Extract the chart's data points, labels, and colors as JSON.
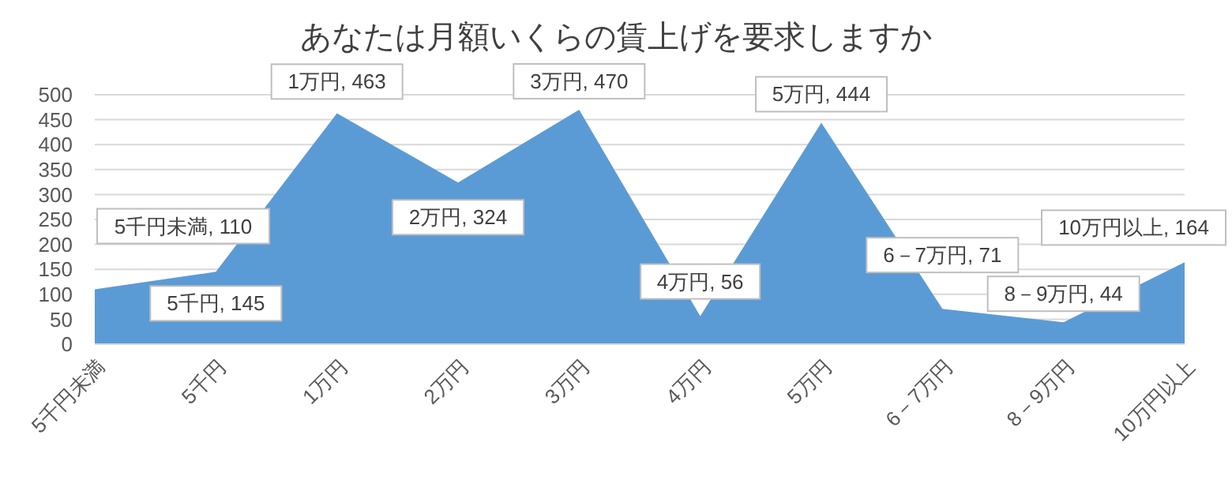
{
  "chart_data": {
    "type": "area",
    "title": "あなたは月額いくらの賃上げを要求しますか",
    "categories": [
      "5千円未満",
      "5千円",
      "1万円",
      "2万円",
      "3万円",
      "4万円",
      "5万円",
      "6－7万円",
      "8－9万円",
      "10万円以上"
    ],
    "values": [
      110,
      145,
      463,
      324,
      470,
      56,
      444,
      71,
      44,
      164
    ],
    "value_labels": [
      "5千円未満, 110",
      "5千円, 145",
      "1万円, 463",
      "2万円, 324",
      "3万円, 470",
      "4万円, 56",
      "5万円, 444",
      "6－7万円, 71",
      "8－9万円, 44",
      "10万円以上, 164"
    ],
    "color": "#5b9bd5",
    "ylim": [
      0,
      500
    ],
    "yticks": [
      0,
      50,
      100,
      150,
      200,
      250,
      300,
      350,
      400,
      450,
      500
    ],
    "grid": "y"
  }
}
